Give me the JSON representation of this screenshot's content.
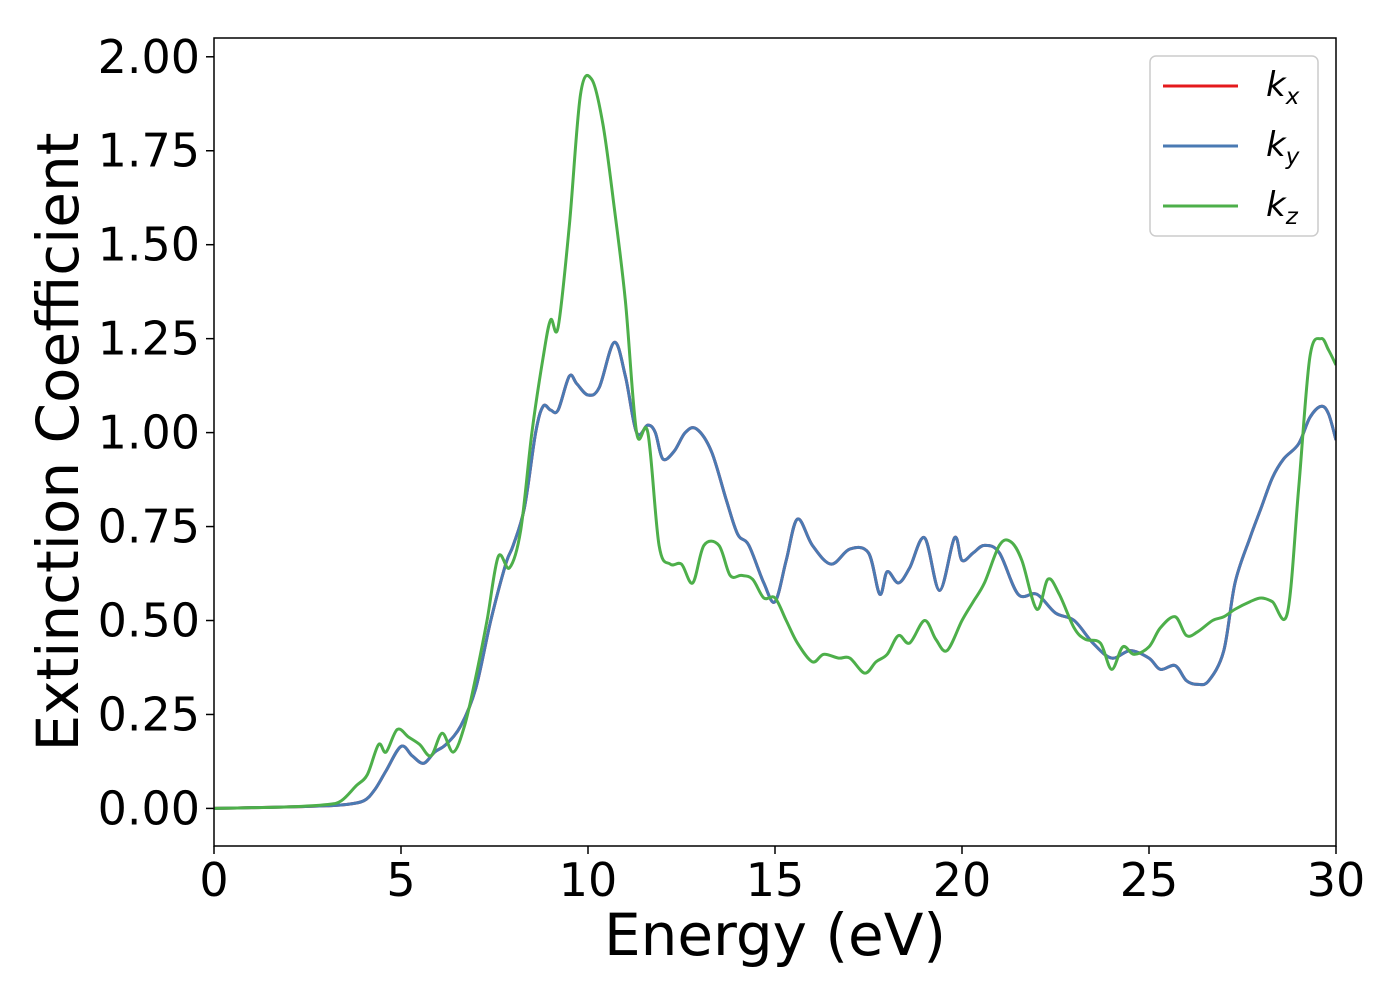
{
  "chart_data": {
    "type": "line",
    "xlabel": "Energy (eV)",
    "ylabel": "Extinction Coefficient",
    "xlim": [
      0,
      30
    ],
    "ylim": [
      -0.1,
      2.05
    ],
    "xticks": [
      0,
      5,
      10,
      15,
      20,
      25,
      30
    ],
    "xtick_labels": [
      "0",
      "5",
      "10",
      "15",
      "20",
      "25",
      "30"
    ],
    "yticks": [
      0,
      0.25,
      0.5,
      0.75,
      1.0,
      1.25,
      1.5,
      1.75,
      2.0
    ],
    "ytick_labels": [
      "0.00",
      "0.25",
      "0.50",
      "0.75",
      "1.00",
      "1.25",
      "1.50",
      "1.75",
      "2.00"
    ],
    "grid": false,
    "legend_position": "top-right",
    "series": [
      {
        "name": "k_x",
        "label_main": "k",
        "label_sub": "x",
        "color": "#e41a1c",
        "x": [
          0,
          1,
          2,
          3,
          3.5,
          4,
          4.3,
          4.6,
          5.0,
          5.3,
          5.6,
          5.9,
          6.2,
          6.6,
          7.0,
          7.4,
          7.8,
          8.0,
          8.3,
          8.6,
          8.8,
          9.0,
          9.2,
          9.5,
          9.7,
          10.0,
          10.3,
          10.7,
          11.0,
          11.3,
          11.6,
          11.8,
          12.0,
          12.3,
          12.6,
          12.9,
          13.3,
          13.7,
          14.0,
          14.3,
          14.7,
          15.0,
          15.3,
          15.6,
          16.0,
          16.5,
          17.0,
          17.5,
          17.8,
          18.0,
          18.3,
          18.6,
          19.0,
          19.4,
          19.8,
          20.0,
          20.3,
          20.6,
          21.0,
          21.5,
          22.0,
          22.5,
          23.0,
          23.5,
          24.0,
          24.5,
          25.0,
          25.3,
          25.7,
          26.0,
          26.3,
          26.6,
          27.0,
          27.3,
          27.7,
          28.0,
          28.3,
          28.6,
          29.0,
          29.3,
          29.6,
          29.8,
          30.0
        ],
        "y": [
          0,
          0.002,
          0.004,
          0.007,
          0.01,
          0.02,
          0.05,
          0.1,
          0.165,
          0.14,
          0.12,
          0.15,
          0.17,
          0.22,
          0.32,
          0.5,
          0.65,
          0.7,
          0.8,
          1.0,
          1.07,
          1.06,
          1.06,
          1.15,
          1.13,
          1.1,
          1.12,
          1.24,
          1.15,
          1.0,
          1.02,
          1.0,
          0.93,
          0.95,
          1.0,
          1.01,
          0.95,
          0.82,
          0.73,
          0.7,
          0.6,
          0.55,
          0.66,
          0.77,
          0.7,
          0.65,
          0.69,
          0.68,
          0.57,
          0.63,
          0.6,
          0.64,
          0.72,
          0.58,
          0.72,
          0.66,
          0.68,
          0.7,
          0.68,
          0.57,
          0.57,
          0.52,
          0.5,
          0.44,
          0.4,
          0.42,
          0.4,
          0.37,
          0.38,
          0.34,
          0.33,
          0.34,
          0.42,
          0.6,
          0.72,
          0.8,
          0.88,
          0.93,
          0.97,
          1.04,
          1.07,
          1.05,
          0.98
        ]
      },
      {
        "name": "k_y",
        "label_main": "k",
        "label_sub": "y",
        "color": "#4a7ab3",
        "x": [
          0,
          1,
          2,
          3,
          3.5,
          4,
          4.3,
          4.6,
          5.0,
          5.3,
          5.6,
          5.9,
          6.2,
          6.6,
          7.0,
          7.4,
          7.8,
          8.0,
          8.3,
          8.6,
          8.8,
          9.0,
          9.2,
          9.5,
          9.7,
          10.0,
          10.3,
          10.7,
          11.0,
          11.3,
          11.6,
          11.8,
          12.0,
          12.3,
          12.6,
          12.9,
          13.3,
          13.7,
          14.0,
          14.3,
          14.7,
          15.0,
          15.3,
          15.6,
          16.0,
          16.5,
          17.0,
          17.5,
          17.8,
          18.0,
          18.3,
          18.6,
          19.0,
          19.4,
          19.8,
          20.0,
          20.3,
          20.6,
          21.0,
          21.5,
          22.0,
          22.5,
          23.0,
          23.5,
          24.0,
          24.5,
          25.0,
          25.3,
          25.7,
          26.0,
          26.3,
          26.6,
          27.0,
          27.3,
          27.7,
          28.0,
          28.3,
          28.6,
          29.0,
          29.3,
          29.6,
          29.8,
          30.0
        ],
        "y": [
          0,
          0.002,
          0.004,
          0.007,
          0.01,
          0.02,
          0.05,
          0.1,
          0.165,
          0.14,
          0.12,
          0.15,
          0.17,
          0.22,
          0.32,
          0.5,
          0.65,
          0.7,
          0.8,
          1.0,
          1.07,
          1.06,
          1.06,
          1.15,
          1.13,
          1.1,
          1.12,
          1.24,
          1.15,
          1.0,
          1.02,
          1.0,
          0.93,
          0.95,
          1.0,
          1.01,
          0.95,
          0.82,
          0.73,
          0.7,
          0.6,
          0.55,
          0.66,
          0.77,
          0.7,
          0.65,
          0.69,
          0.68,
          0.57,
          0.63,
          0.6,
          0.64,
          0.72,
          0.58,
          0.72,
          0.66,
          0.68,
          0.7,
          0.68,
          0.57,
          0.57,
          0.52,
          0.5,
          0.44,
          0.4,
          0.42,
          0.4,
          0.37,
          0.38,
          0.34,
          0.33,
          0.34,
          0.42,
          0.6,
          0.72,
          0.8,
          0.88,
          0.93,
          0.97,
          1.04,
          1.07,
          1.05,
          0.98
        ]
      },
      {
        "name": "k_z",
        "label_main": "k",
        "label_sub": "z",
        "color": "#4daf4a",
        "x": [
          0,
          1,
          2,
          3,
          3.4,
          3.8,
          4.1,
          4.4,
          4.6,
          4.9,
          5.2,
          5.5,
          5.8,
          6.1,
          6.4,
          6.7,
          7.0,
          7.3,
          7.6,
          7.9,
          8.2,
          8.5,
          8.8,
          9.0,
          9.2,
          9.5,
          9.8,
          10.1,
          10.4,
          10.7,
          11.0,
          11.3,
          11.6,
          11.9,
          12.2,
          12.5,
          12.8,
          13.1,
          13.5,
          13.8,
          14.1,
          14.4,
          14.7,
          15.0,
          15.3,
          15.6,
          16.0,
          16.3,
          16.7,
          17.0,
          17.4,
          17.7,
          18.0,
          18.3,
          18.6,
          19.0,
          19.3,
          19.6,
          20.0,
          20.3,
          20.6,
          21.0,
          21.3,
          21.6,
          22.0,
          22.3,
          22.6,
          23.0,
          23.3,
          23.7,
          24.0,
          24.3,
          24.6,
          25.0,
          25.3,
          25.7,
          26.0,
          26.3,
          26.7,
          27.0,
          27.3,
          27.7,
          28.0,
          28.3,
          28.7,
          29.0,
          29.3,
          29.6,
          29.8,
          30.0
        ],
        "y": [
          0,
          0.002,
          0.004,
          0.01,
          0.02,
          0.06,
          0.09,
          0.17,
          0.15,
          0.21,
          0.19,
          0.17,
          0.14,
          0.2,
          0.15,
          0.22,
          0.35,
          0.5,
          0.67,
          0.64,
          0.74,
          1.0,
          1.2,
          1.3,
          1.28,
          1.55,
          1.9,
          1.94,
          1.82,
          1.6,
          1.35,
          1.0,
          1.0,
          0.7,
          0.65,
          0.65,
          0.6,
          0.7,
          0.7,
          0.62,
          0.62,
          0.61,
          0.56,
          0.56,
          0.5,
          0.44,
          0.39,
          0.41,
          0.4,
          0.4,
          0.36,
          0.39,
          0.41,
          0.46,
          0.44,
          0.5,
          0.45,
          0.42,
          0.5,
          0.55,
          0.6,
          0.7,
          0.71,
          0.66,
          0.53,
          0.61,
          0.57,
          0.48,
          0.45,
          0.44,
          0.37,
          0.43,
          0.41,
          0.43,
          0.48,
          0.51,
          0.46,
          0.47,
          0.5,
          0.51,
          0.53,
          0.55,
          0.56,
          0.55,
          0.52,
          0.85,
          1.2,
          1.25,
          1.22,
          1.18
        ]
      }
    ]
  }
}
